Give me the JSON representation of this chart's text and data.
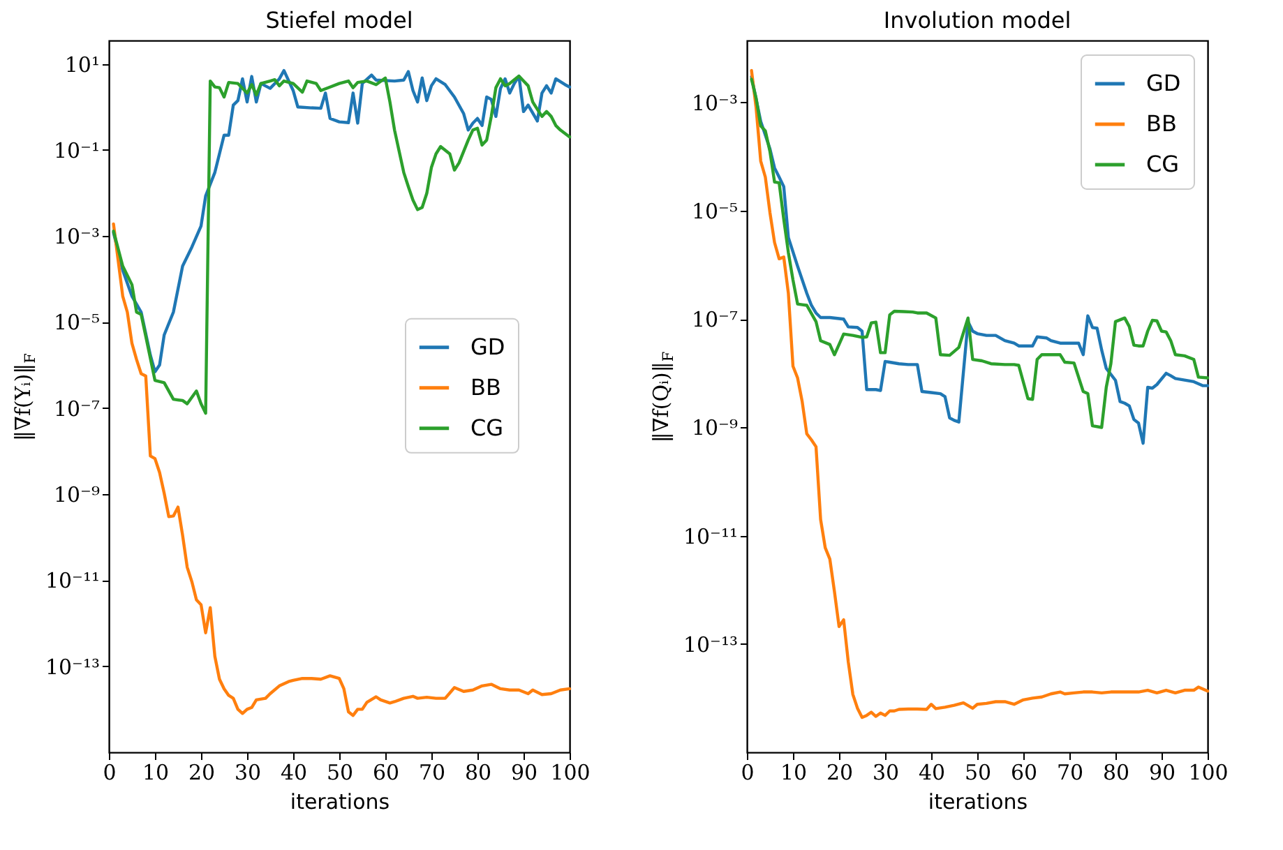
{
  "chart_data": [
    {
      "type": "line",
      "title": "Stiefel model",
      "xlabel": "iterations",
      "ylabel": "‖∇f(Yᵢ)‖$_{F}$",
      "log": true,
      "legend": "right",
      "grid": false,
      "xlim": [
        0,
        100
      ],
      "xticks": [
        0,
        10,
        20,
        30,
        40,
        50,
        60,
        70,
        80,
        90,
        100
      ],
      "ylim": [
        1e-15,
        35
      ],
      "yticks": [
        {
          "value": 1e-13,
          "label": "10⁻¹³"
        },
        {
          "value": 1e-11,
          "label": "10⁻¹¹"
        },
        {
          "value": 1e-09,
          "label": "10⁻⁹"
        },
        {
          "value": 1e-07,
          "label": "10⁻⁷"
        },
        {
          "value": 1e-05,
          "label": "10⁻⁵"
        },
        {
          "value": 0.001,
          "label": "10⁻³"
        },
        {
          "value": 0.1,
          "label": "10⁻¹"
        },
        {
          "value": 10,
          "label": "10¹"
        }
      ],
      "series": [
        {
          "name": "GD",
          "color": "#1f77b4",
          "x": [
            1,
            3,
            5,
            7,
            9,
            10,
            11,
            12,
            14,
            16,
            18,
            20,
            21,
            23,
            25,
            26,
            27,
            28,
            29,
            30,
            31,
            32,
            33,
            35,
            37,
            38,
            40,
            41,
            44,
            46,
            47,
            48,
            50,
            52,
            53,
            54,
            55,
            57,
            58,
            62,
            64,
            65,
            66,
            67,
            68,
            69,
            70,
            71,
            73,
            75,
            77,
            78,
            79,
            80,
            81,
            82,
            83,
            84,
            85,
            86,
            87,
            88,
            89,
            90,
            91,
            93,
            94,
            95,
            96,
            97,
            99,
            100
          ],
          "values": [
            0.0012,
            0.00016,
            4e-05,
            1.7e-05,
            1.7e-06,
            7e-07,
            1e-06,
            5e-06,
            1.7e-05,
            0.0002,
            0.00055,
            0.0017,
            0.0085,
            0.03,
            0.22,
            0.22,
            1.1,
            1.4,
            4.5,
            1.3,
            5.1,
            1.3,
            3.5,
            2.7,
            4.5,
            7,
            2.4,
            1.0,
            0.95,
            0.93,
            2.1,
            0.54,
            0.45,
            0.43,
            2.1,
            0.42,
            3.5,
            5.5,
            4.2,
            4,
            4.2,
            6.6,
            2.4,
            1.3,
            4.7,
            1.4,
            3.1,
            4.5,
            3.3,
            1.7,
            0.7,
            0.29,
            0.42,
            0.54,
            0.37,
            1.7,
            1.5,
            0.6,
            2.7,
            4.5,
            2.1,
            3.5,
            5.2,
            0.78,
            1.1,
            0.47,
            2.1,
            3.1,
            2.1,
            4.5,
            3.3,
            2.9
          ]
        },
        {
          "name": "BB",
          "color": "#ff7f0e",
          "x": [
            1,
            3,
            4,
            5,
            6,
            7,
            8,
            9,
            10,
            11,
            12,
            13,
            14,
            15,
            16,
            17,
            18,
            19,
            20,
            21,
            22,
            23,
            24,
            25,
            26,
            27,
            28,
            29,
            30,
            31,
            32,
            34,
            35,
            37,
            39,
            40,
            42,
            44,
            46,
            48,
            50,
            51,
            52,
            53,
            54,
            55,
            56,
            58,
            59,
            61,
            62,
            64,
            66,
            67,
            69,
            71,
            73,
            75,
            77,
            79,
            81,
            83,
            85,
            87,
            89,
            91,
            92,
            94,
            96,
            98,
            100
          ],
          "values": [
            0.0019,
            4e-05,
            1.7e-05,
            3.2e-06,
            1.35e-06,
            6.3e-07,
            5.6e-07,
            7.7e-09,
            6.7e-09,
            3.2e-09,
            1.05e-09,
            3e-10,
            3.1e-10,
            5e-10,
            1.1e-10,
            2e-11,
            9.3e-12,
            3.5e-12,
            2.7e-12,
            6e-13,
            2.3e-12,
            1.7e-13,
            5e-14,
            3e-14,
            2.1e-14,
            1.8e-14,
            1e-14,
            8e-15,
            1e-14,
            1.1e-14,
            1.65e-14,
            1.8e-14,
            2.3e-14,
            3.5e-14,
            4.4e-14,
            4.7e-14,
            5.2e-14,
            5.2e-14,
            5e-14,
            6e-14,
            5.2e-14,
            3e-14,
            8.7e-15,
            7.2e-15,
            1e-14,
            1e-14,
            1.45e-14,
            1.95e-14,
            1.65e-14,
            1.4e-14,
            1.5e-14,
            1.8e-14,
            2e-14,
            1.8e-14,
            1.9e-14,
            1.8e-14,
            1.8e-14,
            3.2e-14,
            2.6e-14,
            2.8e-14,
            3.5e-14,
            3.8e-14,
            3e-14,
            2.8e-14,
            2.8e-14,
            2.3e-14,
            2.8e-14,
            2.2e-14,
            2.3e-14,
            2.8e-14,
            3e-14
          ]
        },
        {
          "name": "CG",
          "color": "#2ca02c",
          "x": [
            1,
            3,
            5,
            6,
            7,
            8,
            10,
            12,
            14,
            16,
            17,
            19,
            20,
            21,
            22,
            23,
            24,
            25,
            26,
            28,
            30,
            31,
            32,
            33,
            35,
            36,
            37,
            38,
            40,
            42,
            43,
            45,
            46,
            48,
            50,
            52,
            53,
            54,
            56,
            58,
            60,
            61,
            62,
            63,
            64,
            65,
            66,
            67,
            68,
            69,
            70,
            71,
            72,
            74,
            75,
            76,
            78,
            79,
            80,
            81,
            82,
            83,
            84,
            85,
            86,
            87,
            88,
            89,
            90,
            91,
            92,
            93,
            94,
            95,
            96,
            97,
            98,
            100
          ],
          "values": [
            0.0013,
            0.0002,
            7.4e-05,
            1.7e-05,
            1.5e-05,
            4.7e-06,
            4.4e-07,
            3.9e-07,
            1.6e-07,
            1.5e-07,
            1.26e-07,
            2.5e-07,
            1.26e-07,
            7.6e-08,
            4,
            2.9,
            2.8,
            1.7,
            3.7,
            3.5,
            2.1,
            3.3,
            1.9,
            3.5,
            4,
            4.3,
            3.1,
            4,
            3.5,
            2.2,
            4,
            3.5,
            2.4,
            2.9,
            3.5,
            4,
            2.8,
            3.7,
            4,
            3.3,
            4.7,
            1.3,
            0.29,
            0.093,
            0.03,
            0.014,
            0.0068,
            0.0041,
            0.0046,
            0.0098,
            0.039,
            0.081,
            0.12,
            0.081,
            0.034,
            0.05,
            0.17,
            0.29,
            0.32,
            0.13,
            0.17,
            0.6,
            2.8,
            4.5,
            3.1,
            3.5,
            4.3,
            5.2,
            4,
            3.1,
            1.3,
            0.88,
            0.6,
            0.78,
            0.6,
            0.37,
            0.29,
            0.2
          ]
        }
      ]
    },
    {
      "type": "line",
      "title": "Involution model",
      "xlabel": "iterations",
      "ylabel": "‖∇f(Qᵢ)‖$_{F}$",
      "log": true,
      "legend": "top right",
      "grid": false,
      "xlim": [
        0,
        100
      ],
      "xticks": [
        0,
        10,
        20,
        30,
        40,
        50,
        60,
        70,
        80,
        90,
        100
      ],
      "ylim": [
        1e-15,
        0.014
      ],
      "yticks": [
        {
          "value": 1e-13,
          "label": "10⁻¹³"
        },
        {
          "value": 1e-11,
          "label": "10⁻¹¹"
        },
        {
          "value": 1e-09,
          "label": "10⁻⁹"
        },
        {
          "value": 1e-07,
          "label": "10⁻⁷"
        },
        {
          "value": 1e-05,
          "label": "10⁻⁵"
        },
        {
          "value": 0.001,
          "label": "10⁻³"
        }
      ],
      "series": [
        {
          "name": "GD",
          "color": "#1f77b4",
          "x": [
            1,
            3,
            5,
            6,
            7,
            8,
            9,
            11,
            13,
            14,
            15,
            16,
            18,
            21,
            22,
            24,
            25,
            26,
            28,
            29,
            30,
            31,
            33,
            35,
            37,
            38,
            40,
            42,
            43,
            44,
            45,
            46,
            48,
            49,
            50,
            52,
            54,
            56,
            58,
            59,
            61,
            62,
            63,
            65,
            66,
            68,
            70,
            72,
            73,
            74,
            75,
            76,
            77,
            78,
            80,
            81,
            82,
            83,
            84,
            85,
            86,
            87,
            88,
            89,
            91,
            92,
            93,
            95,
            97,
            99,
            100
          ],
          "values": [
            0.003,
            0.00045,
            0.00014,
            6.2e-05,
            4.2e-05,
            2.8e-05,
            3.2e-06,
            9.5e-07,
            3e-07,
            1.8e-07,
            1.3e-07,
            1.07e-07,
            1.07e-07,
            1e-07,
            7.2e-08,
            7e-08,
            6e-08,
            5e-09,
            5e-09,
            4.8e-09,
            1.65e-08,
            1.6e-08,
            1.5e-08,
            1.45e-08,
            1.45e-08,
            4.6e-09,
            4.4e-09,
            4.2e-09,
            3.7e-09,
            1.5e-09,
            1.35e-09,
            1.26e-09,
            9e-08,
            6e-08,
            5.4e-08,
            5e-08,
            5e-08,
            4e-08,
            3.6e-08,
            3.2e-08,
            3.2e-08,
            3.2e-08,
            4.7e-08,
            4.5e-08,
            4e-08,
            3.6e-08,
            3.6e-08,
            3.6e-08,
            2.2e-08,
            1.15e-07,
            7e-08,
            6.8e-08,
            2.7e-08,
            1.23e-08,
            7.4e-09,
            3e-09,
            2.8e-09,
            2.5e-09,
            1.4e-09,
            1.2e-09,
            5.1e-10,
            5.5e-09,
            5.3e-09,
            6.2e-09,
            1e-08,
            9e-09,
            8e-09,
            7.5e-09,
            7e-09,
            5.9e-09,
            5.9e-09
          ]
        },
        {
          "name": "BB",
          "color": "#ff7f0e",
          "x": [
            1,
            2,
            3,
            4,
            5,
            6,
            7,
            8,
            9,
            10,
            11,
            12,
            13,
            14,
            15,
            16,
            17,
            18,
            19,
            20,
            21,
            22,
            23,
            24,
            25,
            26,
            27,
            28,
            29,
            30,
            31,
            32,
            33,
            35,
            37,
            39,
            40,
            41,
            43,
            45,
            47,
            49,
            50,
            52,
            54,
            56,
            58,
            60,
            62,
            64,
            66,
            68,
            69,
            71,
            73,
            75,
            77,
            79,
            81,
            83,
            85,
            87,
            89,
            91,
            93,
            95,
            97,
            98,
            100
          ],
          "values": [
            0.0039,
            0.0008,
            8.3e-05,
            4.2e-05,
            9.3e-06,
            2.6e-06,
            1.3e-06,
            1.4e-06,
            3e-07,
            1.35e-08,
            8.2e-09,
            3e-09,
            7.6e-10,
            5.9e-10,
            4.4e-10,
            2e-11,
            6e-12,
            3.7e-12,
            9.3e-13,
            2.1e-13,
            2.8e-13,
            4.7e-14,
            1.17e-14,
            6.5e-15,
            4.4e-15,
            4.8e-15,
            5.5e-15,
            4.6e-15,
            5.3e-15,
            4.8e-15,
            5.8e-15,
            5.8e-15,
            6.2e-15,
            6.3e-15,
            6.3e-15,
            6.2e-15,
            7.7e-15,
            6.4e-15,
            6.8e-15,
            7.4e-15,
            8.2e-15,
            6.5e-15,
            7.7e-15,
            8e-15,
            8.6e-15,
            8.6e-15,
            7.7e-15,
            9.3e-15,
            1e-14,
            1.05e-14,
            1.2e-14,
            1.3e-14,
            1.2e-14,
            1.25e-14,
            1.3e-14,
            1.3e-14,
            1.25e-14,
            1.3e-14,
            1.3e-14,
            1.3e-14,
            1.3e-14,
            1.4e-14,
            1.25e-14,
            1.4e-14,
            1.25e-14,
            1.4e-14,
            1.4e-14,
            1.6e-14,
            1.35e-14
          ]
        },
        {
          "name": "CG",
          "color": "#2ca02c",
          "x": [
            1,
            2,
            3,
            4,
            5,
            6,
            7,
            8,
            9,
            10,
            11,
            12,
            13,
            15,
            16,
            18,
            19,
            20,
            21,
            23,
            25,
            26,
            27,
            28,
            29,
            30,
            31,
            32,
            34,
            36,
            37,
            39,
            41,
            42,
            44,
            46,
            48,
            49,
            51,
            53,
            56,
            58,
            59,
            61,
            62,
            63,
            64,
            66,
            68,
            69,
            71,
            73,
            74,
            75,
            77,
            78,
            79,
            80,
            82,
            83,
            84,
            85,
            86,
            87,
            88,
            89,
            90,
            91,
            92,
            93,
            95,
            97,
            98,
            100
          ],
          "values": [
            0.0027,
            0.0012,
            0.00037,
            0.0003,
            0.000125,
            3.4e-05,
            3.3e-05,
            7e-06,
            1.7e-06,
            5.3e-07,
            1.9e-07,
            1.85e-07,
            1.8e-07,
            9e-08,
            4e-08,
            3.4e-08,
            2.2e-08,
            3.4e-08,
            5.3e-08,
            5e-08,
            4.6e-08,
            4.7e-08,
            8.5e-08,
            8.8e-08,
            2.4e-08,
            2.4e-08,
            1.2e-07,
            1.4e-07,
            1.38e-07,
            1.35e-07,
            1.3e-07,
            1.3e-07,
            1.05e-07,
            2.2e-08,
            2.15e-08,
            3e-08,
            1.05e-07,
            1.8e-08,
            1.7e-08,
            1.5e-08,
            1.45e-08,
            1.45e-08,
            1.4e-08,
            3.4e-09,
            3.3e-09,
            1.8e-08,
            2.2e-08,
            2.2e-08,
            2.2e-08,
            1.6e-08,
            1.55e-08,
            4.6e-09,
            4.2e-09,
            1.07e-09,
            1e-09,
            5.5e-09,
            1.5e-08,
            9e-08,
            1.05e-07,
            7.3e-08,
            3.3e-08,
            3.2e-08,
            3.2e-08,
            6e-08,
            9.5e-08,
            9.3e-08,
            6e-08,
            5.8e-08,
            4e-08,
            2.2e-08,
            2.1e-08,
            1.8e-08,
            8.5e-09,
            8.2e-09
          ]
        }
      ]
    }
  ]
}
